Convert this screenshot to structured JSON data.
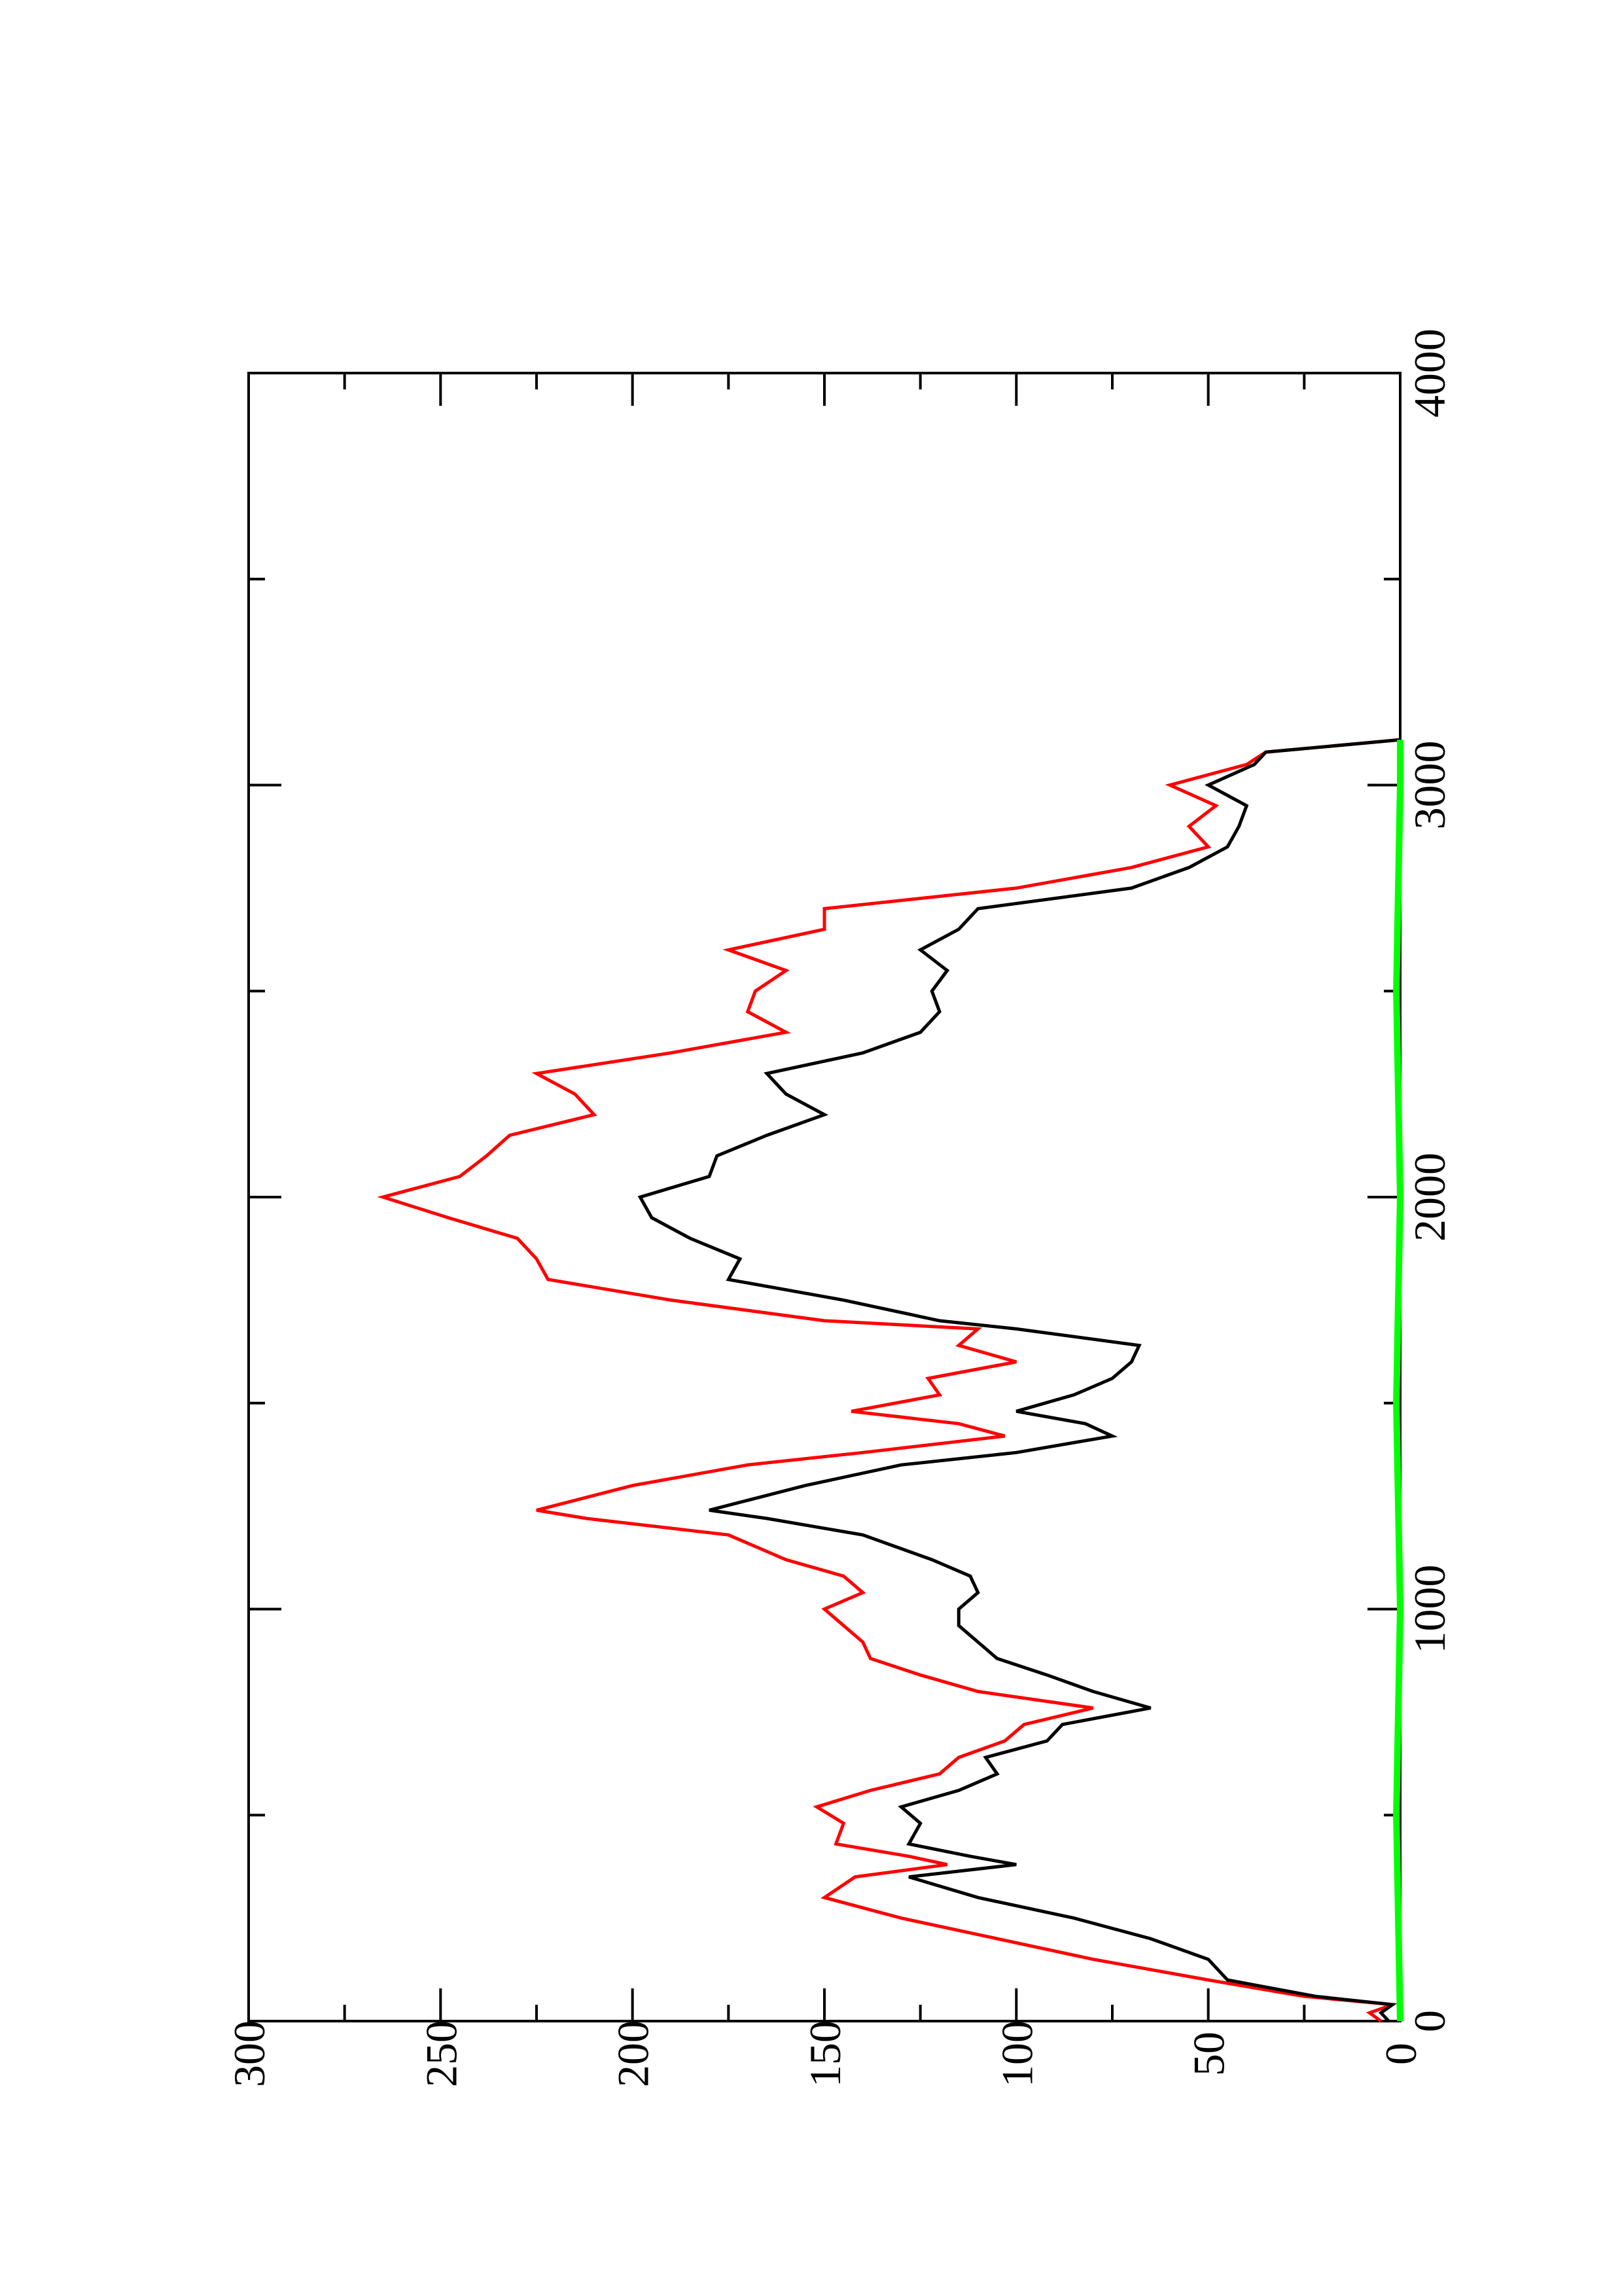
{
  "chart_data": {
    "type": "line",
    "orientation": "rotated 90 degrees counter-clockwise (x axis runs bottom-to-top, y axis runs right-to-left)",
    "title": "",
    "xlabel": "",
    "ylabel": "",
    "xlim": [
      0,
      4000
    ],
    "ylim": [
      0,
      300
    ],
    "x_ticks": [
      0,
      1000,
      2000,
      3000,
      4000
    ],
    "x_tick_labels": [
      "0",
      "1000",
      "2000",
      "3000",
      "4000"
    ],
    "y_ticks": [
      0,
      50,
      100,
      150,
      200,
      250,
      300
    ],
    "y_tick_labels": [
      "0",
      "50",
      "100",
      "150",
      "200",
      "250",
      "300"
    ],
    "grid": false,
    "legend": "none",
    "series": [
      {
        "color": "#ff0000",
        "x": [
          0,
          20,
          40,
          60,
          100,
          150,
          200,
          250,
          300,
          350,
          380,
          400,
          430,
          480,
          520,
          560,
          600,
          640,
          680,
          720,
          760,
          800,
          840,
          880,
          920,
          960,
          1000,
          1040,
          1080,
          1120,
          1180,
          1220,
          1240,
          1300,
          1350,
          1380,
          1420,
          1450,
          1480,
          1520,
          1560,
          1600,
          1640,
          1680,
          1700,
          1750,
          1800,
          1850,
          1900,
          1950,
          2000,
          2050,
          2100,
          2150,
          2200,
          2250,
          2300,
          2350,
          2400,
          2450,
          2500,
          2550,
          2600,
          2650,
          2700,
          2750,
          2800,
          2850,
          2900,
          2950,
          3000,
          3050,
          3080,
          3110
        ],
        "values": [
          5,
          8,
          2,
          25,
          50,
          80,
          105,
          130,
          150,
          142,
          118,
          128,
          147,
          145,
          152,
          138,
          120,
          115,
          103,
          98,
          80,
          110,
          125,
          138,
          140,
          145,
          150,
          140,
          145,
          160,
          175,
          212,
          225,
          200,
          170,
          140,
          103,
          115,
          143,
          120,
          123,
          100,
          115,
          110,
          150,
          190,
          222,
          225,
          230,
          248,
          265,
          245,
          238,
          232,
          210,
          215,
          225,
          190,
          160,
          170,
          168,
          160,
          175,
          150,
          150,
          100,
          70,
          50,
          55,
          48,
          60,
          40,
          35,
          0
        ]
      },
      {
        "color": "#000000",
        "x": [
          0,
          20,
          40,
          60,
          100,
          150,
          200,
          250,
          300,
          350,
          380,
          400,
          430,
          480,
          520,
          560,
          600,
          640,
          680,
          720,
          760,
          800,
          840,
          880,
          920,
          960,
          1000,
          1040,
          1080,
          1120,
          1180,
          1220,
          1240,
          1300,
          1350,
          1380,
          1420,
          1450,
          1480,
          1520,
          1560,
          1600,
          1640,
          1680,
          1700,
          1750,
          1800,
          1850,
          1900,
          1950,
          2000,
          2050,
          2100,
          2150,
          2200,
          2250,
          2300,
          2350,
          2400,
          2450,
          2500,
          2550,
          2600,
          2650,
          2700,
          2750,
          2800,
          2850,
          2900,
          2950,
          3000,
          3050,
          3080,
          3110
        ],
        "values": [
          3,
          5,
          2,
          22,
          45,
          50,
          65,
          85,
          110,
          128,
          100,
          112,
          128,
          125,
          130,
          115,
          105,
          108,
          92,
          88,
          65,
          80,
          92,
          105,
          110,
          115,
          115,
          110,
          112,
          122,
          140,
          165,
          180,
          155,
          130,
          100,
          75,
          82,
          100,
          85,
          75,
          70,
          68,
          100,
          120,
          145,
          175,
          172,
          185,
          195,
          198,
          180,
          178,
          165,
          150,
          160,
          165,
          140,
          125,
          120,
          122,
          118,
          125,
          115,
          110,
          70,
          55,
          45,
          42,
          40,
          50,
          38,
          35,
          0
        ]
      },
      {
        "color": "#00ff00",
        "x": [
          0,
          500,
          1000,
          1500,
          2000,
          2500,
          3000,
          3110
        ],
        "values": [
          0,
          1,
          0,
          1,
          0,
          1,
          0,
          0
        ]
      }
    ]
  }
}
